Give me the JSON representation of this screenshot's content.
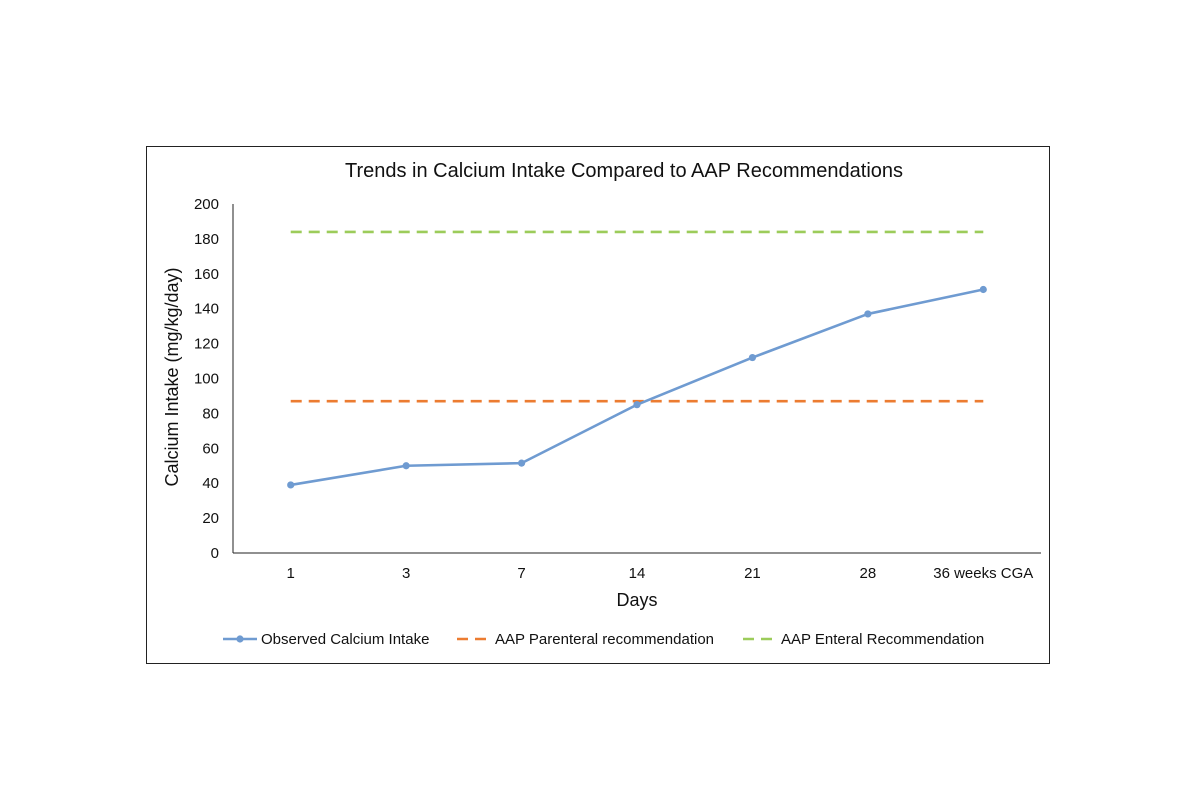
{
  "chart_data": {
    "type": "line",
    "title": "Trends in Calcium Intake Compared to AAP Recommendations",
    "xlabel": "Days",
    "ylabel": "Calcium Intake (mg/kg/day)",
    "categories": [
      "1",
      "3",
      "7",
      "14",
      "21",
      "28",
      "36 weeks CGA"
    ],
    "ylim": [
      0,
      200
    ],
    "yticks": [
      0,
      20,
      40,
      60,
      80,
      100,
      120,
      140,
      160,
      180,
      200
    ],
    "grid": false,
    "legend_position": "bottom",
    "series": [
      {
        "name": "Observed Calcium Intake",
        "style": "solid-markers",
        "color": "#6f9bd1",
        "values": [
          39,
          50,
          51.5,
          85,
          112,
          137,
          151
        ]
      },
      {
        "name": "AAP Parenteral recommendation",
        "style": "dashed",
        "color": "#ec7c31",
        "values": [
          87,
          87,
          87,
          87,
          87,
          87,
          87
        ]
      },
      {
        "name": "AAP Enteral Recommendation",
        "style": "dashed",
        "color": "#9ccc5a",
        "values": [
          184,
          184,
          184,
          184,
          184,
          184,
          184
        ]
      }
    ]
  }
}
